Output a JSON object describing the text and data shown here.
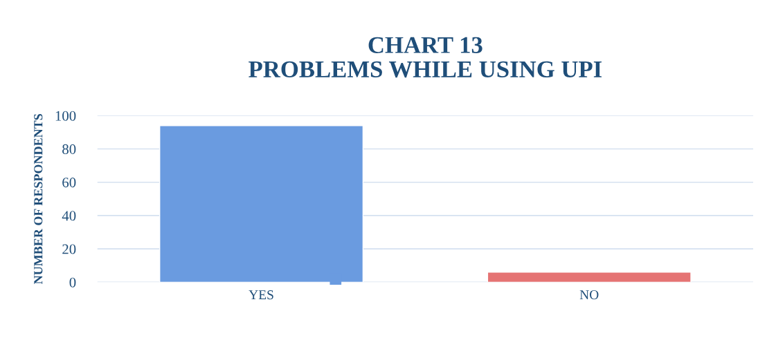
{
  "chart_data": {
    "type": "bar",
    "title": "CHART 13\nPROBLEMS WHILE USING UPI",
    "ylabel": "NUMBER OF RESPONDENTS",
    "categories": [
      "YES",
      "NO"
    ],
    "values": [
      94,
      6
    ],
    "colors": [
      "#6a9be0",
      "#e57373"
    ],
    "ylim": [
      0,
      100
    ],
    "yticks": [
      0,
      20,
      40,
      60,
      80,
      100
    ],
    "grid": "y"
  }
}
